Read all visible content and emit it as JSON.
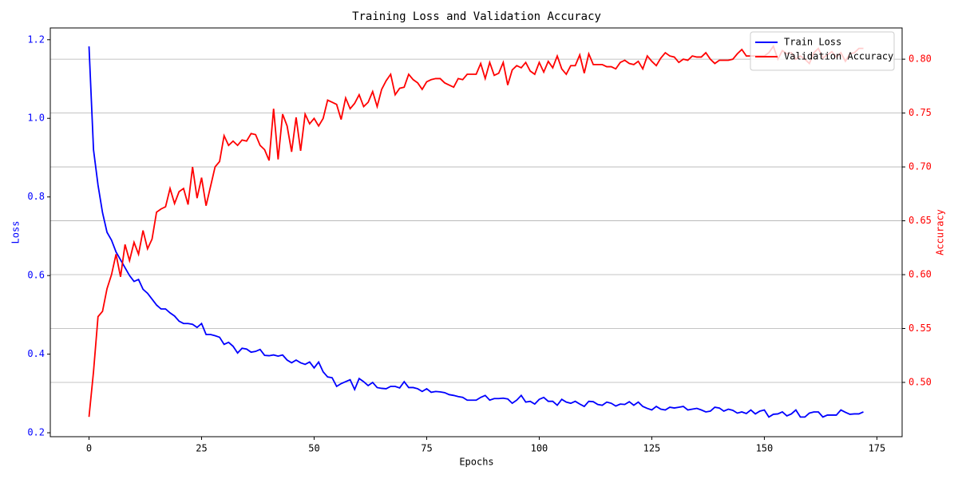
{
  "chart_data": {
    "type": "line",
    "title": "Training Loss and Validation Accuracy",
    "x_label": "Epochs",
    "y_label": "Loss",
    "y2_label": "Accuracy",
    "x": [
      0,
      1,
      2,
      3,
      4,
      5,
      6,
      7,
      8,
      9,
      10,
      11,
      12,
      13,
      14,
      15,
      16,
      17,
      18,
      19,
      20,
      21,
      22,
      23,
      24,
      25,
      26,
      27,
      28,
      29,
      30,
      31,
      32,
      33,
      34,
      35,
      36,
      37,
      38,
      39,
      40,
      41,
      42,
      43,
      44,
      45,
      46,
      47,
      48,
      49,
      50,
      51,
      52,
      53,
      54,
      55,
      56,
      57,
      58,
      59,
      60,
      61,
      62,
      63,
      64,
      65,
      66,
      67,
      68,
      69,
      70,
      71,
      72,
      73,
      74,
      75,
      76,
      77,
      78,
      79,
      80,
      81,
      82,
      83,
      84,
      85,
      86,
      87,
      88,
      89,
      90,
      91,
      92,
      93,
      94,
      95,
      96,
      97,
      98,
      99,
      100,
      101,
      102,
      103,
      104,
      105,
      106,
      107,
      108,
      109,
      110,
      111,
      112,
      113,
      114,
      115,
      116,
      117,
      118,
      119,
      120,
      121,
      122,
      123,
      124,
      125,
      126,
      127,
      128,
      129,
      130,
      131,
      132,
      133,
      134,
      135,
      136,
      137,
      138,
      139,
      140,
      141,
      142,
      143,
      144,
      145,
      146,
      147,
      148,
      149,
      150,
      151,
      152,
      153,
      154,
      155,
      156,
      157,
      158,
      159,
      160,
      161,
      162,
      163,
      164,
      165,
      166,
      167,
      168,
      169,
      170,
      171,
      172
    ],
    "series": [
      {
        "name": "Train Loss",
        "color": "#0000ff",
        "axis": "y",
        "values": [
          1.183,
          0.92,
          0.83,
          0.76,
          0.71,
          0.69,
          0.66,
          0.64,
          0.62,
          0.6,
          0.585,
          0.59,
          0.565,
          0.555,
          0.54,
          0.525,
          0.515,
          0.515,
          0.505,
          0.497,
          0.484,
          0.478,
          0.478,
          0.476,
          0.468,
          0.478,
          0.45,
          0.45,
          0.447,
          0.443,
          0.425,
          0.43,
          0.42,
          0.403,
          0.415,
          0.413,
          0.405,
          0.407,
          0.412,
          0.397,
          0.396,
          0.398,
          0.395,
          0.398,
          0.385,
          0.378,
          0.385,
          0.378,
          0.374,
          0.38,
          0.365,
          0.38,
          0.355,
          0.342,
          0.34,
          0.318,
          0.325,
          0.33,
          0.335,
          0.31,
          0.338,
          0.33,
          0.32,
          0.328,
          0.315,
          0.313,
          0.312,
          0.318,
          0.318,
          0.314,
          0.33,
          0.315,
          0.315,
          0.312,
          0.305,
          0.312,
          0.303,
          0.305,
          0.304,
          0.302,
          0.297,
          0.295,
          0.292,
          0.29,
          0.283,
          0.283,
          0.283,
          0.29,
          0.295,
          0.283,
          0.287,
          0.287,
          0.288,
          0.286,
          0.275,
          0.283,
          0.295,
          0.278,
          0.28,
          0.273,
          0.285,
          0.29,
          0.28,
          0.28,
          0.27,
          0.285,
          0.278,
          0.275,
          0.28,
          0.273,
          0.267,
          0.28,
          0.279,
          0.272,
          0.27,
          0.278,
          0.275,
          0.268,
          0.273,
          0.272,
          0.279,
          0.27,
          0.278,
          0.267,
          0.262,
          0.258,
          0.267,
          0.26,
          0.258,
          0.265,
          0.263,
          0.265,
          0.267,
          0.258,
          0.26,
          0.262,
          0.258,
          0.253,
          0.255,
          0.265,
          0.263,
          0.255,
          0.26,
          0.257,
          0.25,
          0.253,
          0.249,
          0.258,
          0.248,
          0.255,
          0.258,
          0.24,
          0.247,
          0.248,
          0.253,
          0.243,
          0.248,
          0.258,
          0.24,
          0.24,
          0.25,
          0.253,
          0.253,
          0.24,
          0.245,
          0.245,
          0.245,
          0.258,
          0.252,
          0.247,
          0.248,
          0.248,
          0.253
        ]
      },
      {
        "name": "Validation Accuracy",
        "color": "#ff0000",
        "axis": "y2",
        "values": [
          0.468,
          0.51,
          0.561,
          0.566,
          0.587,
          0.6,
          0.619,
          0.598,
          0.628,
          0.613,
          0.63,
          0.619,
          0.641,
          0.624,
          0.633,
          0.658,
          0.661,
          0.663,
          0.68,
          0.666,
          0.677,
          0.68,
          0.665,
          0.7,
          0.671,
          0.69,
          0.664,
          0.682,
          0.7,
          0.705,
          0.729,
          0.72,
          0.724,
          0.72,
          0.725,
          0.724,
          0.731,
          0.73,
          0.72,
          0.716,
          0.706,
          0.754,
          0.707,
          0.749,
          0.738,
          0.714,
          0.746,
          0.715,
          0.749,
          0.74,
          0.745,
          0.738,
          0.745,
          0.762,
          0.76,
          0.758,
          0.744,
          0.764,
          0.754,
          0.759,
          0.767,
          0.756,
          0.76,
          0.77,
          0.756,
          0.772,
          0.78,
          0.786,
          0.767,
          0.773,
          0.774,
          0.786,
          0.781,
          0.778,
          0.772,
          0.779,
          0.781,
          0.782,
          0.782,
          0.778,
          0.776,
          0.774,
          0.782,
          0.781,
          0.786,
          0.786,
          0.786,
          0.796,
          0.782,
          0.797,
          0.785,
          0.787,
          0.797,
          0.776,
          0.79,
          0.794,
          0.792,
          0.797,
          0.789,
          0.786,
          0.797,
          0.788,
          0.798,
          0.792,
          0.803,
          0.791,
          0.786,
          0.794,
          0.794,
          0.804,
          0.787,
          0.805,
          0.795,
          0.795,
          0.795,
          0.793,
          0.793,
          0.791,
          0.797,
          0.799,
          0.796,
          0.795,
          0.798,
          0.791,
          0.803,
          0.798,
          0.794,
          0.801,
          0.806,
          0.803,
          0.802,
          0.797,
          0.8,
          0.799,
          0.803,
          0.802,
          0.802,
          0.806,
          0.8,
          0.796,
          0.799,
          0.799,
          0.799,
          0.8,
          0.805,
          0.809,
          0.803,
          0.803,
          0.803,
          0.803,
          0.803,
          0.806,
          0.812,
          0.8,
          0.808,
          0.805,
          0.806,
          0.8,
          0.803,
          0.8,
          0.796,
          0.806,
          0.81,
          0.801,
          0.804,
          0.807,
          0.802,
          0.806,
          0.798,
          0.805,
          0.806,
          0.81,
          0.81
        ]
      }
    ],
    "xlim": [
      -8.6,
      180.6
    ],
    "xticks": [
      0,
      25,
      50,
      75,
      100,
      125,
      150,
      175
    ],
    "ylim": [
      0.19,
      1.23
    ],
    "yticks": [
      0.2,
      0.4,
      0.6,
      0.8,
      {
        "value": 1.0,
        "label": "1.0"
      },
      1.2
    ],
    "y2lim": [
      0.4496,
      0.829
    ],
    "y2ticks": [
      {
        "value": 0.5,
        "label": "0.50"
      },
      0.55,
      {
        "value": 0.6,
        "label": "0.60"
      },
      0.65,
      {
        "value": 0.7,
        "label": "0.70"
      },
      0.75,
      {
        "value": 0.8,
        "label": "0.80"
      }
    ],
    "grid": true,
    "grid_axis": "y2",
    "legend": "upper right"
  }
}
